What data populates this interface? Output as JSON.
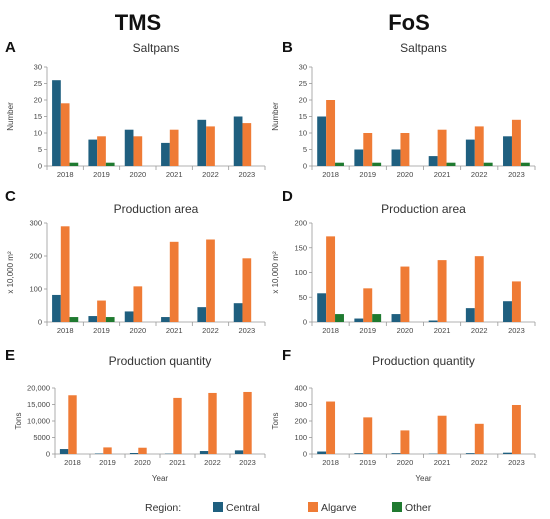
{
  "colors": {
    "Central": "#1f5f7f",
    "Algarve": "#ef7b35",
    "Other": "#1f7a30"
  },
  "columns": [
    {
      "title": "TMS"
    },
    {
      "title": "FoS"
    }
  ],
  "legend": {
    "title": "Region:",
    "entries": [
      "Central",
      "Algarve",
      "Other"
    ]
  },
  "chart_data": [
    {
      "panel": "A",
      "type": "bar",
      "title": "Saltpans",
      "ylabel": "Number",
      "xlabel": "",
      "categories": [
        "2018",
        "2019",
        "2020",
        "2021",
        "2022",
        "2023"
      ],
      "ylim": [
        0,
        30
      ],
      "yticks": [
        0,
        5,
        10,
        15,
        20,
        25,
        30
      ],
      "ytick_labels": [
        "0",
        "5",
        "10",
        "15",
        "20",
        "25",
        "30"
      ],
      "series": [
        {
          "name": "Central",
          "values": [
            26,
            8,
            11,
            7,
            14,
            15
          ]
        },
        {
          "name": "Algarve",
          "values": [
            19,
            9,
            9,
            11,
            12,
            13
          ]
        },
        {
          "name": "Other",
          "values": [
            1,
            1,
            0,
            0,
            0,
            0
          ]
        }
      ]
    },
    {
      "panel": "B",
      "type": "bar",
      "title": "Saltpans",
      "ylabel": "Number",
      "xlabel": "",
      "categories": [
        "2018",
        "2019",
        "2020",
        "2021",
        "2022",
        "2023"
      ],
      "ylim": [
        0,
        30
      ],
      "yticks": [
        0,
        5,
        10,
        15,
        20,
        25,
        30
      ],
      "ytick_labels": [
        "0",
        "5",
        "10",
        "15",
        "20",
        "25",
        "30"
      ],
      "series": [
        {
          "name": "Central",
          "values": [
            15,
            5,
            5,
            3,
            8,
            9
          ]
        },
        {
          "name": "Algarve",
          "values": [
            20,
            10,
            10,
            11,
            12,
            14
          ]
        },
        {
          "name": "Other",
          "values": [
            1,
            1,
            0,
            1,
            1,
            1
          ]
        }
      ]
    },
    {
      "panel": "C",
      "type": "bar",
      "title": "Production area",
      "ylabel": "x 10,000 m²",
      "xlabel": "",
      "categories": [
        "2018",
        "2019",
        "2020",
        "2021",
        "2022",
        "2023"
      ],
      "ylim": [
        0,
        300
      ],
      "yticks": [
        0,
        100,
        200,
        300
      ],
      "ytick_labels": [
        "0",
        "100",
        "200",
        "300"
      ],
      "series": [
        {
          "name": "Central",
          "values": [
            82,
            18,
            32,
            15,
            45,
            57
          ]
        },
        {
          "name": "Algarve",
          "values": [
            290,
            65,
            108,
            243,
            250,
            193
          ]
        },
        {
          "name": "Other",
          "values": [
            15,
            15,
            0,
            0,
            0,
            0
          ]
        }
      ]
    },
    {
      "panel": "D",
      "type": "bar",
      "title": "Production area",
      "ylabel": "x 10,000 m²",
      "xlabel": "",
      "categories": [
        "2018",
        "2019",
        "2020",
        "2021",
        "2022",
        "2023"
      ],
      "ylim": [
        0,
        200
      ],
      "yticks": [
        0,
        50,
        100,
        150,
        200
      ],
      "ytick_labels": [
        "0",
        "50",
        "100",
        "150",
        "200"
      ],
      "series": [
        {
          "name": "Central",
          "values": [
            58,
            7,
            16,
            3,
            28,
            42
          ]
        },
        {
          "name": "Algarve",
          "values": [
            173,
            68,
            112,
            125,
            133,
            82
          ]
        },
        {
          "name": "Other",
          "values": [
            16,
            16,
            0,
            0,
            0,
            0
          ]
        }
      ]
    },
    {
      "panel": "E",
      "type": "bar",
      "title": "Production quantity",
      "ylabel": "Tons",
      "xlabel": "Year",
      "categories": [
        "2018",
        "2019",
        "2020",
        "2021",
        "2022",
        "2023"
      ],
      "ylim": [
        0,
        20000
      ],
      "yticks": [
        0,
        5000,
        10000,
        15000,
        20000
      ],
      "ytick_labels": [
        "0",
        "5000",
        "10,000",
        "15,000",
        "20,000"
      ],
      "series": [
        {
          "name": "Central",
          "values": [
            1500,
            150,
            300,
            100,
            900,
            1100
          ]
        },
        {
          "name": "Algarve",
          "values": [
            17800,
            2000,
            1900,
            17000,
            18500,
            18800
          ]
        },
        {
          "name": "Other",
          "values": [
            0,
            0,
            0,
            0,
            0,
            0
          ]
        }
      ]
    },
    {
      "panel": "F",
      "type": "bar",
      "title": "Production quantity",
      "ylabel": "Tons",
      "xlabel": "Year",
      "categories": [
        "2018",
        "2019",
        "2020",
        "2021",
        "2022",
        "2023"
      ],
      "ylim": [
        0,
        400
      ],
      "yticks": [
        0,
        100,
        200,
        300,
        400
      ],
      "ytick_labels": [
        "0",
        "100",
        "200",
        "300",
        "400"
      ],
      "series": [
        {
          "name": "Central",
          "values": [
            15,
            5,
            5,
            2,
            5,
            8
          ]
        },
        {
          "name": "Algarve",
          "values": [
            318,
            222,
            143,
            232,
            183,
            297
          ]
        },
        {
          "name": "Other",
          "values": [
            0,
            0,
            0,
            0,
            0,
            0
          ]
        }
      ]
    }
  ]
}
